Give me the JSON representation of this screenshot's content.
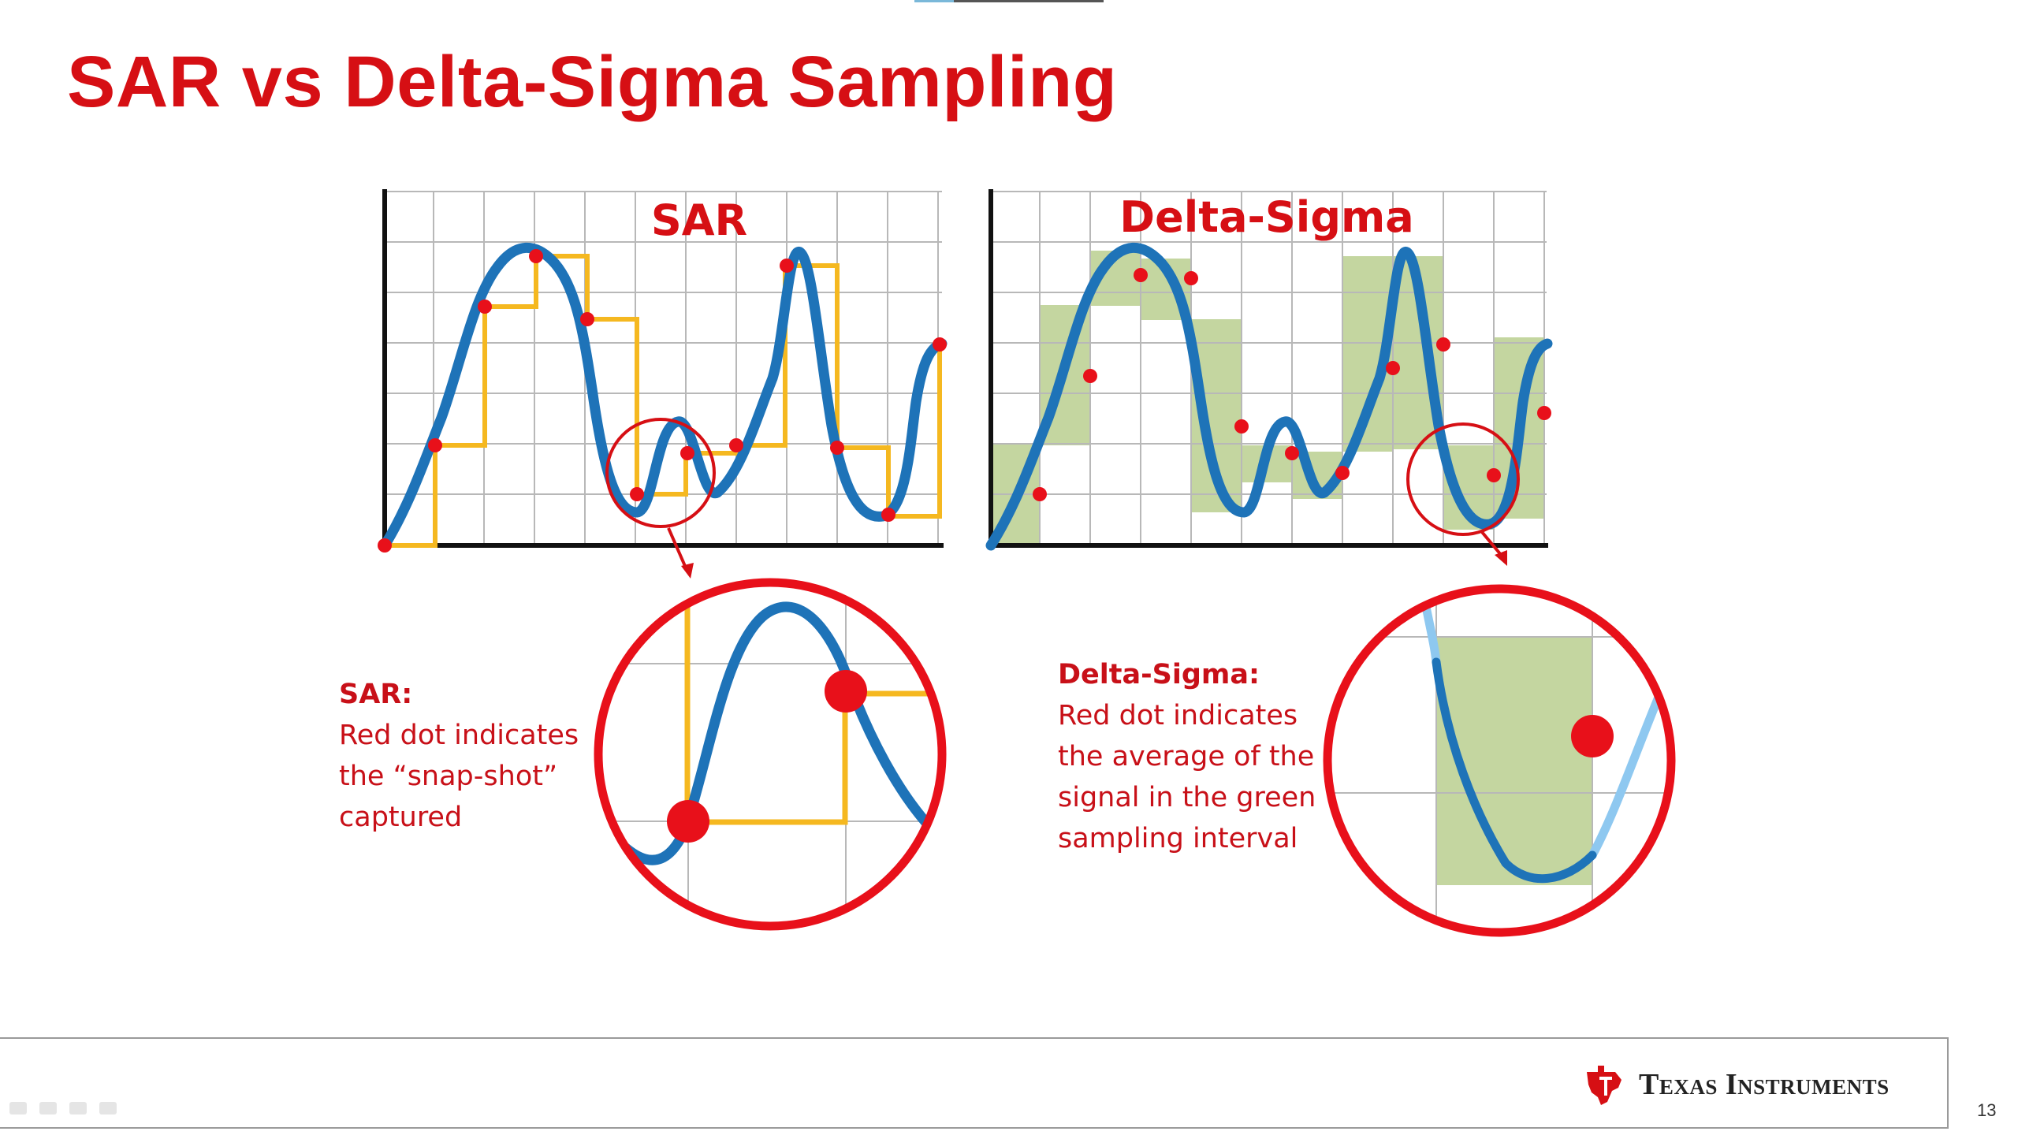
{
  "slide": {
    "title": "SAR vs Delta-Sigma Sampling",
    "page_number": "13",
    "brand": "Texas Instruments"
  },
  "colors": {
    "title_red": "#d60f14",
    "signal_blue": "#1e73b8",
    "signal_light_blue": "#8ec8f0",
    "sar_step_yellow": "#f5b820",
    "sample_dot_red": "#e8101a",
    "interval_green": "#c4d6a0",
    "grid_gray": "#b8b8b8"
  },
  "panels": {
    "sar": {
      "label": "SAR",
      "caption_head": "SAR:",
      "caption_lines": [
        "Red dot indicates",
        "the “snap-shot”",
        "captured"
      ]
    },
    "delta_sigma": {
      "label": "Delta-Sigma",
      "caption_head": "Delta-Sigma:",
      "caption_lines": [
        "Red dot indicates",
        "the average of the",
        "signal in the green",
        "sampling interval"
      ]
    }
  }
}
